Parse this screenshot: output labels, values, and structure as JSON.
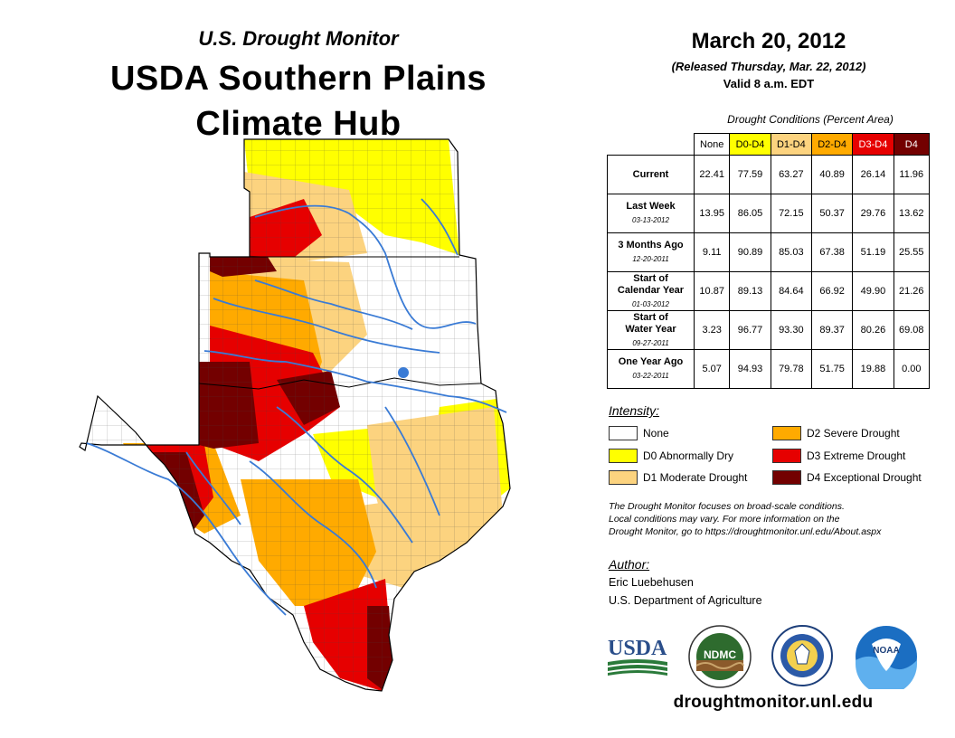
{
  "header": {
    "subtitle": "U.S. Drought Monitor",
    "title_line1": "USDA Southern Plains",
    "title_line2": "Climate Hub"
  },
  "date": {
    "main": "March 20, 2012",
    "released": "(Released Thursday, Mar. 22, 2012)",
    "valid": "Valid 8 a.m. EDT"
  },
  "table": {
    "caption": "Drought Conditions (Percent Area)",
    "columns": [
      {
        "label": "None",
        "color": "#ffffff",
        "text_color": "#000000"
      },
      {
        "label": "D0-D4",
        "color": "#ffff00",
        "text_color": "#000000"
      },
      {
        "label": "D1-D4",
        "color": "#fcd37f",
        "text_color": "#000000"
      },
      {
        "label": "D2-D4",
        "color": "#ffaa00",
        "text_color": "#000000"
      },
      {
        "label": "D3-D4",
        "color": "#e60000",
        "text_color": "#ffffff"
      },
      {
        "label": "D4",
        "color": "#730000",
        "text_color": "#ffffff"
      }
    ],
    "rows": [
      {
        "label": [
          "Current"
        ],
        "date": "",
        "values": [
          "22.41",
          "77.59",
          "63.27",
          "40.89",
          "26.14",
          "11.96"
        ]
      },
      {
        "label": [
          "Last Week"
        ],
        "date": "03-13-2012",
        "values": [
          "13.95",
          "86.05",
          "72.15",
          "50.37",
          "29.76",
          "13.62"
        ]
      },
      {
        "label": [
          "3 Months Ago"
        ],
        "date": "12-20-2011",
        "values": [
          "9.11",
          "90.89",
          "85.03",
          "67.38",
          "51.19",
          "25.55"
        ]
      },
      {
        "label": [
          "Start of",
          "Calendar Year"
        ],
        "date": "01-03-2012",
        "values": [
          "10.87",
          "89.13",
          "84.64",
          "66.92",
          "49.90",
          "21.26"
        ]
      },
      {
        "label": [
          "Start of",
          "Water Year"
        ],
        "date": "09-27-2011",
        "values": [
          "3.23",
          "96.77",
          "93.30",
          "89.37",
          "80.26",
          "69.08"
        ]
      },
      {
        "label": [
          "One Year Ago"
        ],
        "date": "03-22-2011",
        "values": [
          "5.07",
          "94.93",
          "79.78",
          "51.75",
          "19.88",
          "0.00"
        ]
      }
    ]
  },
  "legend": {
    "title": "Intensity:",
    "items": [
      {
        "label": "None",
        "color": "#ffffff"
      },
      {
        "label": "D0 Abnormally Dry",
        "color": "#ffff00"
      },
      {
        "label": "D1 Moderate Drought",
        "color": "#fcd37f"
      },
      {
        "label": "D2 Severe Drought",
        "color": "#ffaa00"
      },
      {
        "label": "D3 Extreme Drought",
        "color": "#e60000"
      },
      {
        "label": "D4 Exceptional Drought",
        "color": "#730000"
      }
    ]
  },
  "note": {
    "line1": "The Drought Monitor focuses on broad-scale conditions.",
    "line2": "Local conditions may vary. For more information on the",
    "line3": "Drought Monitor, go to https://droughtmonitor.unl.edu/About.aspx"
  },
  "author": {
    "label": "Author:",
    "name": "Eric Luebehusen",
    "org": "U.S. Department of Agriculture"
  },
  "logos": {
    "usda": "USDA",
    "ndmc": "NDMC",
    "noaa": "NOAA"
  },
  "website": "droughtmonitor.unl.edu",
  "colors": {
    "none": "#ffffff",
    "d0": "#ffff00",
    "d1": "#fcd37f",
    "d2": "#ffaa00",
    "d3": "#e60000",
    "d4": "#730000",
    "river": "#3a7bd5",
    "county": "#555555"
  }
}
